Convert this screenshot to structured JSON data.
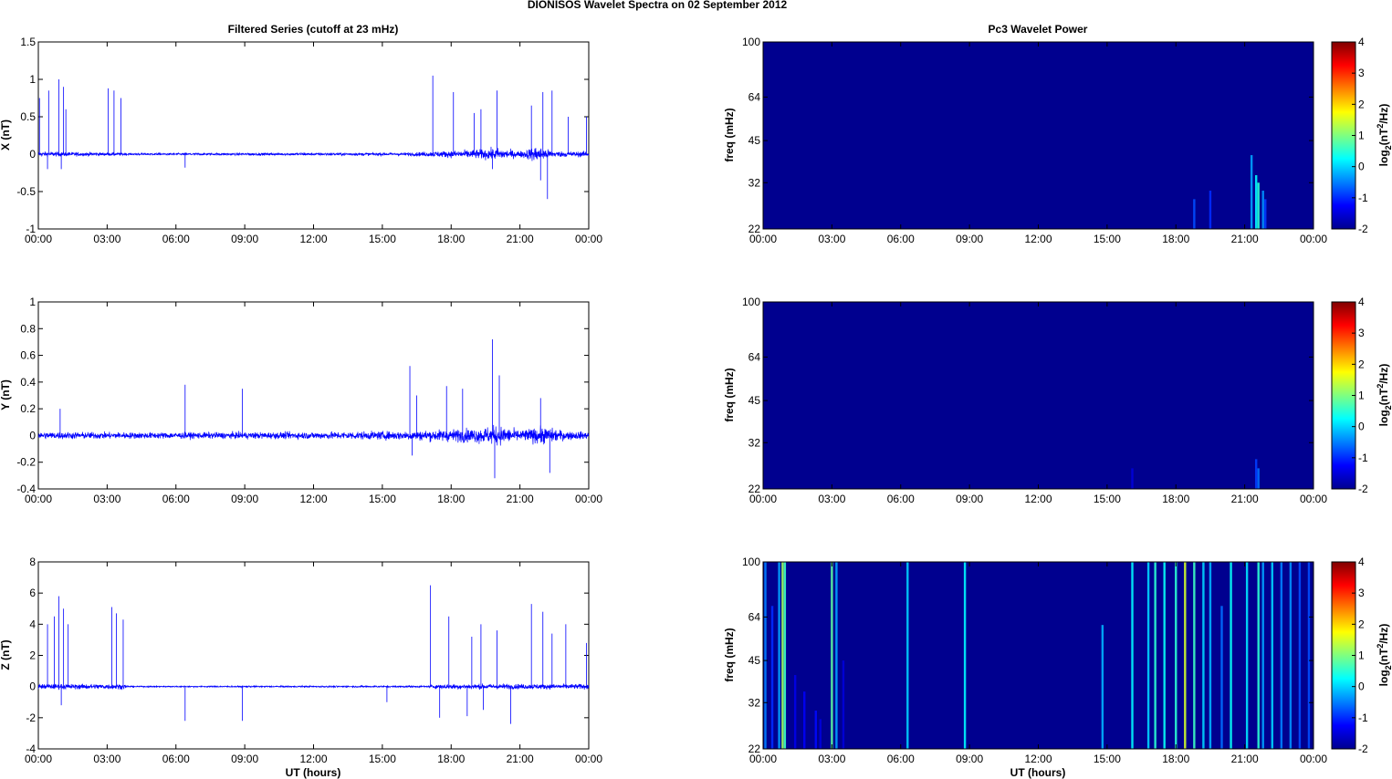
{
  "figure": {
    "title": "DIONISOS Wavelet Spectra on 02 September 2012",
    "left_column_title": "Filtered Series (cutoff at 23 mHz)",
    "right_column_title": "Pc3 Wavelet Power"
  },
  "chart_data": [
    {
      "type": "line",
      "id": "x",
      "ylabel": "X (nT)",
      "xlabel": "",
      "ylim": [
        -1,
        1.5
      ],
      "yticks": [
        "-1",
        "-0.5",
        "0",
        "0.5",
        "1",
        "1.5"
      ],
      "x_ticks": [
        "00:00",
        "03:00",
        "06:00",
        "09:00",
        "12:00",
        "15:00",
        "18:00",
        "21:00",
        "00:00"
      ],
      "xlim_hours": [
        0,
        24
      ],
      "line_color": "#0000ff",
      "noise_profile": [
        [
          0,
          0.05
        ],
        [
          3.7,
          0.03
        ],
        [
          4,
          0.02
        ],
        [
          16,
          0.03
        ],
        [
          17,
          0.05
        ],
        [
          19,
          0.09
        ],
        [
          20,
          0.12
        ],
        [
          21,
          0.06
        ],
        [
          21.7,
          0.16
        ],
        [
          22.5,
          0.06
        ],
        [
          24,
          0.05
        ]
      ],
      "spikes": [
        [
          0.05,
          0.75
        ],
        [
          0.45,
          0.85
        ],
        [
          0.9,
          1.0
        ],
        [
          1.1,
          0.9
        ],
        [
          1.2,
          0.6
        ],
        [
          3.05,
          0.88
        ],
        [
          3.3,
          0.85
        ],
        [
          3.6,
          0.75
        ],
        [
          17.2,
          1.05
        ],
        [
          18.1,
          0.83
        ],
        [
          19.0,
          0.55
        ],
        [
          19.3,
          0.6
        ],
        [
          20.0,
          0.85
        ],
        [
          21.5,
          0.65
        ],
        [
          22.0,
          0.83
        ],
        [
          22.4,
          0.85
        ],
        [
          23.1,
          0.5
        ],
        [
          23.9,
          0.5
        ],
        [
          19.8,
          -0.2
        ],
        [
          21.9,
          -0.35
        ],
        [
          22.2,
          -0.6
        ],
        [
          6.4,
          -0.18
        ],
        [
          0.4,
          -0.2
        ],
        [
          1.0,
          -0.2
        ]
      ]
    },
    {
      "type": "line",
      "id": "y",
      "ylabel": "Y (nT)",
      "xlabel": "",
      "ylim": [
        -0.4,
        1
      ],
      "yticks": [
        "-0.4",
        "-0.2",
        "0",
        "0.2",
        "0.4",
        "0.6",
        "0.8",
        "1"
      ],
      "x_ticks": [
        "00:00",
        "03:00",
        "06:00",
        "09:00",
        "12:00",
        "15:00",
        "18:00",
        "21:00",
        "00:00"
      ],
      "xlim_hours": [
        0,
        24
      ],
      "line_color": "#0000ff",
      "noise_profile": [
        [
          0,
          0.04
        ],
        [
          6,
          0.035
        ],
        [
          12,
          0.04
        ],
        [
          16,
          0.05
        ],
        [
          17,
          0.06
        ],
        [
          19,
          0.08
        ],
        [
          20,
          0.11
        ],
        [
          21,
          0.06
        ],
        [
          22,
          0.1
        ],
        [
          23,
          0.05
        ],
        [
          24,
          0.04
        ]
      ],
      "spikes": [
        [
          0.95,
          0.2
        ],
        [
          6.4,
          0.38
        ],
        [
          8.9,
          0.35
        ],
        [
          16.2,
          0.52
        ],
        [
          16.5,
          0.3
        ],
        [
          17.8,
          0.37
        ],
        [
          18.5,
          0.35
        ],
        [
          19.8,
          0.72
        ],
        [
          20.1,
          0.45
        ],
        [
          21.9,
          0.28
        ],
        [
          19.9,
          -0.32
        ],
        [
          22.3,
          -0.28
        ],
        [
          16.3,
          -0.15
        ]
      ]
    },
    {
      "type": "line",
      "id": "z",
      "ylabel": "Z (nT)",
      "xlabel": "UT (hours)",
      "ylim": [
        -4,
        8
      ],
      "yticks": [
        "-4",
        "-2",
        "0",
        "2",
        "4",
        "6",
        "8"
      ],
      "x_ticks": [
        "00:00",
        "03:00",
        "06:00",
        "09:00",
        "12:00",
        "15:00",
        "18:00",
        "21:00",
        "00:00"
      ],
      "xlim_hours": [
        0,
        24
      ],
      "line_color": "#0000ff",
      "noise_profile": [
        [
          0,
          0.25
        ],
        [
          3.7,
          0.25
        ],
        [
          4,
          0.06
        ],
        [
          17,
          0.08
        ],
        [
          17.5,
          0.25
        ],
        [
          24,
          0.25
        ]
      ],
      "spikes": [
        [
          0.4,
          4.0
        ],
        [
          0.7,
          4.5
        ],
        [
          0.9,
          5.8
        ],
        [
          1.1,
          5.0
        ],
        [
          1.3,
          4.0
        ],
        [
          3.2,
          5.1
        ],
        [
          3.4,
          4.7
        ],
        [
          3.7,
          4.3
        ],
        [
          17.1,
          6.5
        ],
        [
          17.9,
          4.5
        ],
        [
          18.9,
          3.2
        ],
        [
          19.3,
          4.0
        ],
        [
          20.0,
          3.6
        ],
        [
          21.5,
          5.3
        ],
        [
          22.0,
          4.8
        ],
        [
          22.4,
          3.4
        ],
        [
          23.0,
          4.0
        ],
        [
          23.9,
          2.8
        ],
        [
          6.4,
          -2.2
        ],
        [
          8.9,
          -2.2
        ],
        [
          17.5,
          -2.0
        ],
        [
          18.7,
          -1.9
        ],
        [
          20.6,
          -2.4
        ],
        [
          19.4,
          -1.5
        ],
        [
          1.0,
          -1.2
        ],
        [
          15.2,
          -1.0
        ]
      ]
    },
    {
      "type": "heatmap",
      "id": "wx",
      "ylabel": "freq (mHz)",
      "xlabel": "",
      "ylim": [
        22,
        100
      ],
      "yscale": "log",
      "yticks": [
        "22",
        "32",
        "45",
        "64",
        "100"
      ],
      "x_ticks": [
        "00:00",
        "03:00",
        "06:00",
        "09:00",
        "12:00",
        "15:00",
        "18:00",
        "21:00",
        "00:00"
      ],
      "xlim_hours": [
        0,
        24
      ],
      "background_value": -2,
      "colorbar": {
        "label": "log2(nT^2/Hz)",
        "label_main": "log",
        "label_sub": "2",
        "label_rest_a": "(nT",
        "label_sup": "2",
        "label_rest_b": "/Hz)",
        "ticks": [
          "-2",
          "-1",
          "0",
          "1",
          "2",
          "3",
          "4"
        ],
        "range": [
          -2,
          4
        ]
      },
      "streaks": [
        [
          18.8,
          -0.8,
          28
        ],
        [
          19.5,
          -1.0,
          30
        ],
        [
          21.3,
          -0.3,
          40
        ],
        [
          21.5,
          0.2,
          34
        ],
        [
          21.6,
          0.5,
          32
        ],
        [
          21.8,
          -0.4,
          30
        ],
        [
          21.9,
          -0.9,
          28
        ]
      ]
    },
    {
      "type": "heatmap",
      "id": "wy",
      "ylabel": "freq (mHz)",
      "xlabel": "",
      "ylim": [
        22,
        100
      ],
      "yscale": "log",
      "yticks": [
        "22",
        "32",
        "45",
        "64",
        "100"
      ],
      "x_ticks": [
        "00:00",
        "03:00",
        "06:00",
        "09:00",
        "12:00",
        "15:00",
        "18:00",
        "21:00",
        "00:00"
      ],
      "xlim_hours": [
        0,
        24
      ],
      "background_value": -2,
      "colorbar": {
        "label": "log2(nT^2/Hz)",
        "label_main": "log",
        "label_sub": "2",
        "label_rest_a": "(nT",
        "label_sup": "2",
        "label_rest_b": "/Hz)",
        "ticks": [
          "-2",
          "-1",
          "0",
          "1",
          "2",
          "3",
          "4"
        ],
        "range": [
          -2,
          4
        ]
      },
      "streaks": [
        [
          16.1,
          -1.5,
          26
        ],
        [
          21.5,
          -0.9,
          28
        ],
        [
          21.6,
          -0.6,
          26
        ]
      ]
    },
    {
      "type": "heatmap",
      "id": "wz",
      "ylabel": "freq (mHz)",
      "xlabel": "UT (hours)",
      "ylim": [
        22,
        100
      ],
      "yscale": "log",
      "yticks": [
        "22",
        "32",
        "45",
        "64",
        "100"
      ],
      "x_ticks": [
        "00:00",
        "03:00",
        "06:00",
        "09:00",
        "12:00",
        "15:00",
        "18:00",
        "21:00",
        "00:00"
      ],
      "xlim_hours": [
        0,
        24
      ],
      "background_value": -2,
      "colorbar": {
        "label": "log2(nT^2/Hz)",
        "label_main": "log",
        "label_sub": "2",
        "label_rest_a": "(nT",
        "label_sup": "2",
        "label_rest_b": "/Hz)",
        "ticks": [
          "-2",
          "-1",
          "0",
          "1",
          "2",
          "3",
          "4"
        ],
        "range": [
          -2,
          4
        ]
      },
      "streaks": [
        [
          0.1,
          -0.5,
          100
        ],
        [
          0.4,
          -1.0,
          70
        ],
        [
          0.7,
          -0.3,
          100
        ],
        [
          0.85,
          1.2,
          100
        ],
        [
          0.95,
          0.6,
          100
        ],
        [
          1.4,
          -1.4,
          40
        ],
        [
          1.8,
          -1.3,
          35
        ],
        [
          2.3,
          -1.2,
          30
        ],
        [
          2.5,
          -1.5,
          28
        ],
        [
          3.0,
          0.8,
          100
        ],
        [
          3.2,
          -0.3,
          100
        ],
        [
          3.5,
          -1.5,
          45
        ],
        [
          6.3,
          0.0,
          100
        ],
        [
          8.8,
          0.2,
          100
        ],
        [
          14.8,
          -0.2,
          60
        ],
        [
          16.1,
          0.2,
          100
        ],
        [
          16.8,
          0.0,
          100
        ],
        [
          17.1,
          0.5,
          100
        ],
        [
          17.5,
          0.3,
          100
        ],
        [
          18.0,
          0.5,
          100
        ],
        [
          18.4,
          1.5,
          100
        ],
        [
          18.8,
          0.6,
          100
        ],
        [
          19.2,
          0.0,
          100
        ],
        [
          19.5,
          -0.2,
          100
        ],
        [
          20.0,
          -0.6,
          70
        ],
        [
          20.4,
          0.3,
          100
        ],
        [
          21.1,
          0.1,
          100
        ],
        [
          21.6,
          0.5,
          100
        ],
        [
          21.8,
          -0.3,
          100
        ],
        [
          22.2,
          0.0,
          100
        ],
        [
          22.6,
          -0.5,
          100
        ],
        [
          23.0,
          -0.4,
          100
        ],
        [
          23.4,
          -0.8,
          100
        ],
        [
          23.8,
          -0.8,
          100
        ]
      ]
    }
  ]
}
